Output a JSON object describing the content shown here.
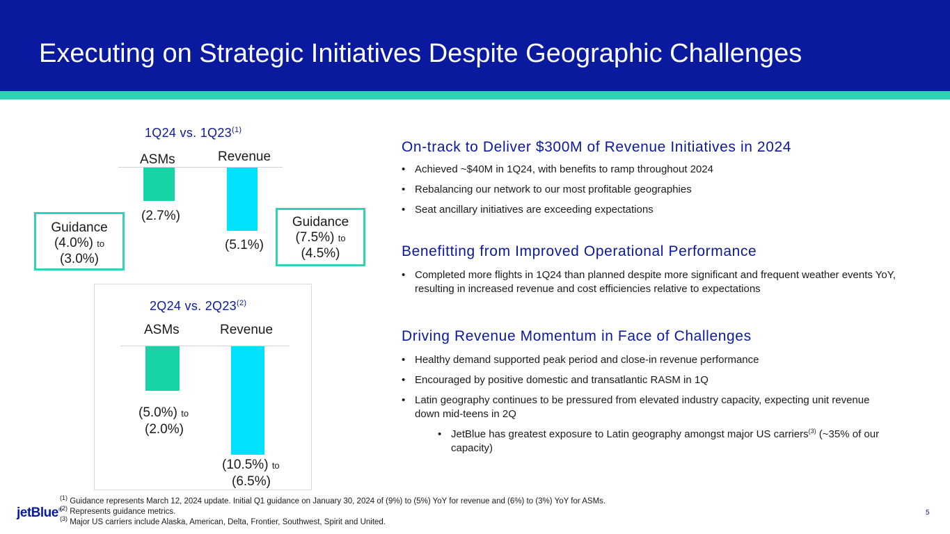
{
  "slide": {
    "title": "Executing on Strategic Initiatives Despite Geographic Challenges",
    "page_number": "5",
    "logo_text": "jetBlue",
    "colors": {
      "header": "#0a1a9e",
      "accent": "#2fd3b7",
      "asm_bar": "#17d4a6",
      "revenue_bar": "#00e0ff"
    }
  },
  "chart_data": [
    {
      "type": "bar",
      "title": "1Q24 vs. 1Q23",
      "title_footnote": "(1)",
      "categories": [
        "ASMs",
        "Revenue"
      ],
      "values": [
        -2.7,
        -5.1
      ],
      "value_labels": [
        [
          "(2.7%)"
        ],
        [
          "(5.1%)"
        ]
      ],
      "guidance": [
        {
          "line1": "Guidance",
          "low": "(4.0%)",
          "to": "to",
          "high": "(3.0%)"
        },
        {
          "line1": "Guidance",
          "low": "(7.5%)",
          "to": "to",
          "high": "(4.5%)"
        }
      ]
    },
    {
      "type": "bar",
      "title": "2Q24 vs. 2Q23",
      "title_footnote": "(2)",
      "categories": [
        "ASMs",
        "Revenue"
      ],
      "values": [
        -3.5,
        -8.5
      ],
      "value_labels": [
        [
          "(5.0%)",
          "to",
          "(2.0%)"
        ],
        [
          "(10.5%)",
          "to",
          "(6.5%)"
        ]
      ]
    }
  ],
  "sections": [
    {
      "title": "On-track to Deliver $300M of Revenue Initiatives in 2024",
      "bullets": [
        "Achieved ~$40M in 1Q24, with benefits to ramp throughout 2024",
        "Rebalancing our network to our most profitable geographies",
        "Seat ancillary initiatives are exceeding expectations"
      ]
    },
    {
      "title": "Benefitting from Improved Operational Performance",
      "bullets": [
        "Completed more flights in 1Q24 than planned despite more significant and frequent weather events YoY, resulting in increased revenue and cost efficiencies relative to expectations"
      ]
    },
    {
      "title": "Driving Revenue Momentum in Face of Challenges",
      "bullets": [
        "Healthy demand supported peak period and close-in revenue performance",
        "Encouraged by positive domestic and transatlantic RASM in 1Q",
        "Latin geography continues to be pressured from elevated industry capacity, expecting unit revenue down mid-teens in 2Q"
      ],
      "sub_bullet": {
        "text": "JetBlue has greatest exposure to Latin geography amongst major US carriers",
        "sup": "(3)",
        "text_after": " (~35% of our capacity)"
      }
    }
  ],
  "footnotes": [
    {
      "mark": "(1)",
      "text": " Guidance represents March 12, 2024 update. Initial Q1 guidance on January 30, 2024 of (9%) to (5%) YoY for revenue and (6%) to (3%) YoY for ASMs."
    },
    {
      "mark": "(2)",
      "text": " Represents guidance metrics."
    },
    {
      "mark": "(3)",
      "text": " Major US carriers include Alaska, American, Delta, Frontier, Southwest, Spirit and United."
    }
  ]
}
